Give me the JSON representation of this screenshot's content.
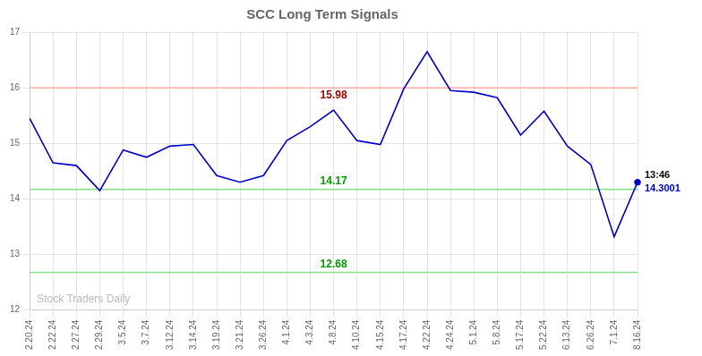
{
  "chart_data": {
    "type": "line",
    "title": "SCC Long Term Signals",
    "categories": [
      "2.20.24",
      "2.22.24",
      "2.27.24",
      "2.29.24",
      "3.5.24",
      "3.7.24",
      "3.12.24",
      "3.14.24",
      "3.19.24",
      "3.21.24",
      "3.26.24",
      "4.1.24",
      "4.3.24",
      "4.8.24",
      "4.10.24",
      "4.15.24",
      "4.17.24",
      "4.22.24",
      "4.24.24",
      "5.1.24",
      "5.8.24",
      "5.17.24",
      "5.22.24",
      "6.13.24",
      "6.26.24",
      "7.1.24",
      "8.16.24"
    ],
    "values": [
      15.45,
      14.65,
      14.6,
      14.15,
      14.88,
      14.75,
      14.95,
      14.98,
      14.42,
      14.3,
      14.42,
      15.05,
      15.3,
      15.6,
      15.05,
      14.98,
      15.98,
      16.65,
      15.95,
      15.92,
      15.82,
      15.15,
      15.58,
      14.95,
      14.62,
      13.32,
      14.3001
    ],
    "color": "#0000cc",
    "ylim": [
      12,
      17
    ],
    "yticks": [
      12,
      13,
      14,
      15,
      16,
      17
    ],
    "grid": true,
    "hlines": [
      {
        "value": 16.0,
        "color": "#ffaaaa",
        "label": "15.98",
        "label_color": "#aa0000",
        "label_category": "4.8.24",
        "label_position": "below"
      },
      {
        "value": 14.17,
        "color": "#88dd88",
        "label": "14.17",
        "label_color": "#009900",
        "label_category": "4.8.24",
        "label_position": "above"
      },
      {
        "value": 12.68,
        "color": "#88dd88",
        "label": "12.68",
        "label_color": "#009900",
        "label_category": "4.8.24",
        "label_position": "above"
      }
    ],
    "annotations": [
      {
        "text": "13:46",
        "category": "8.16.24",
        "value": 14.3001,
        "color": "#000000",
        "label_position": "above",
        "marker": "circle"
      },
      {
        "text": "14.3001",
        "category": "8.16.24",
        "value": 14.3001,
        "color": "#0000cc",
        "label_position": "below",
        "marker": "circle"
      }
    ],
    "watermark": "Stock Traders Daily"
  }
}
